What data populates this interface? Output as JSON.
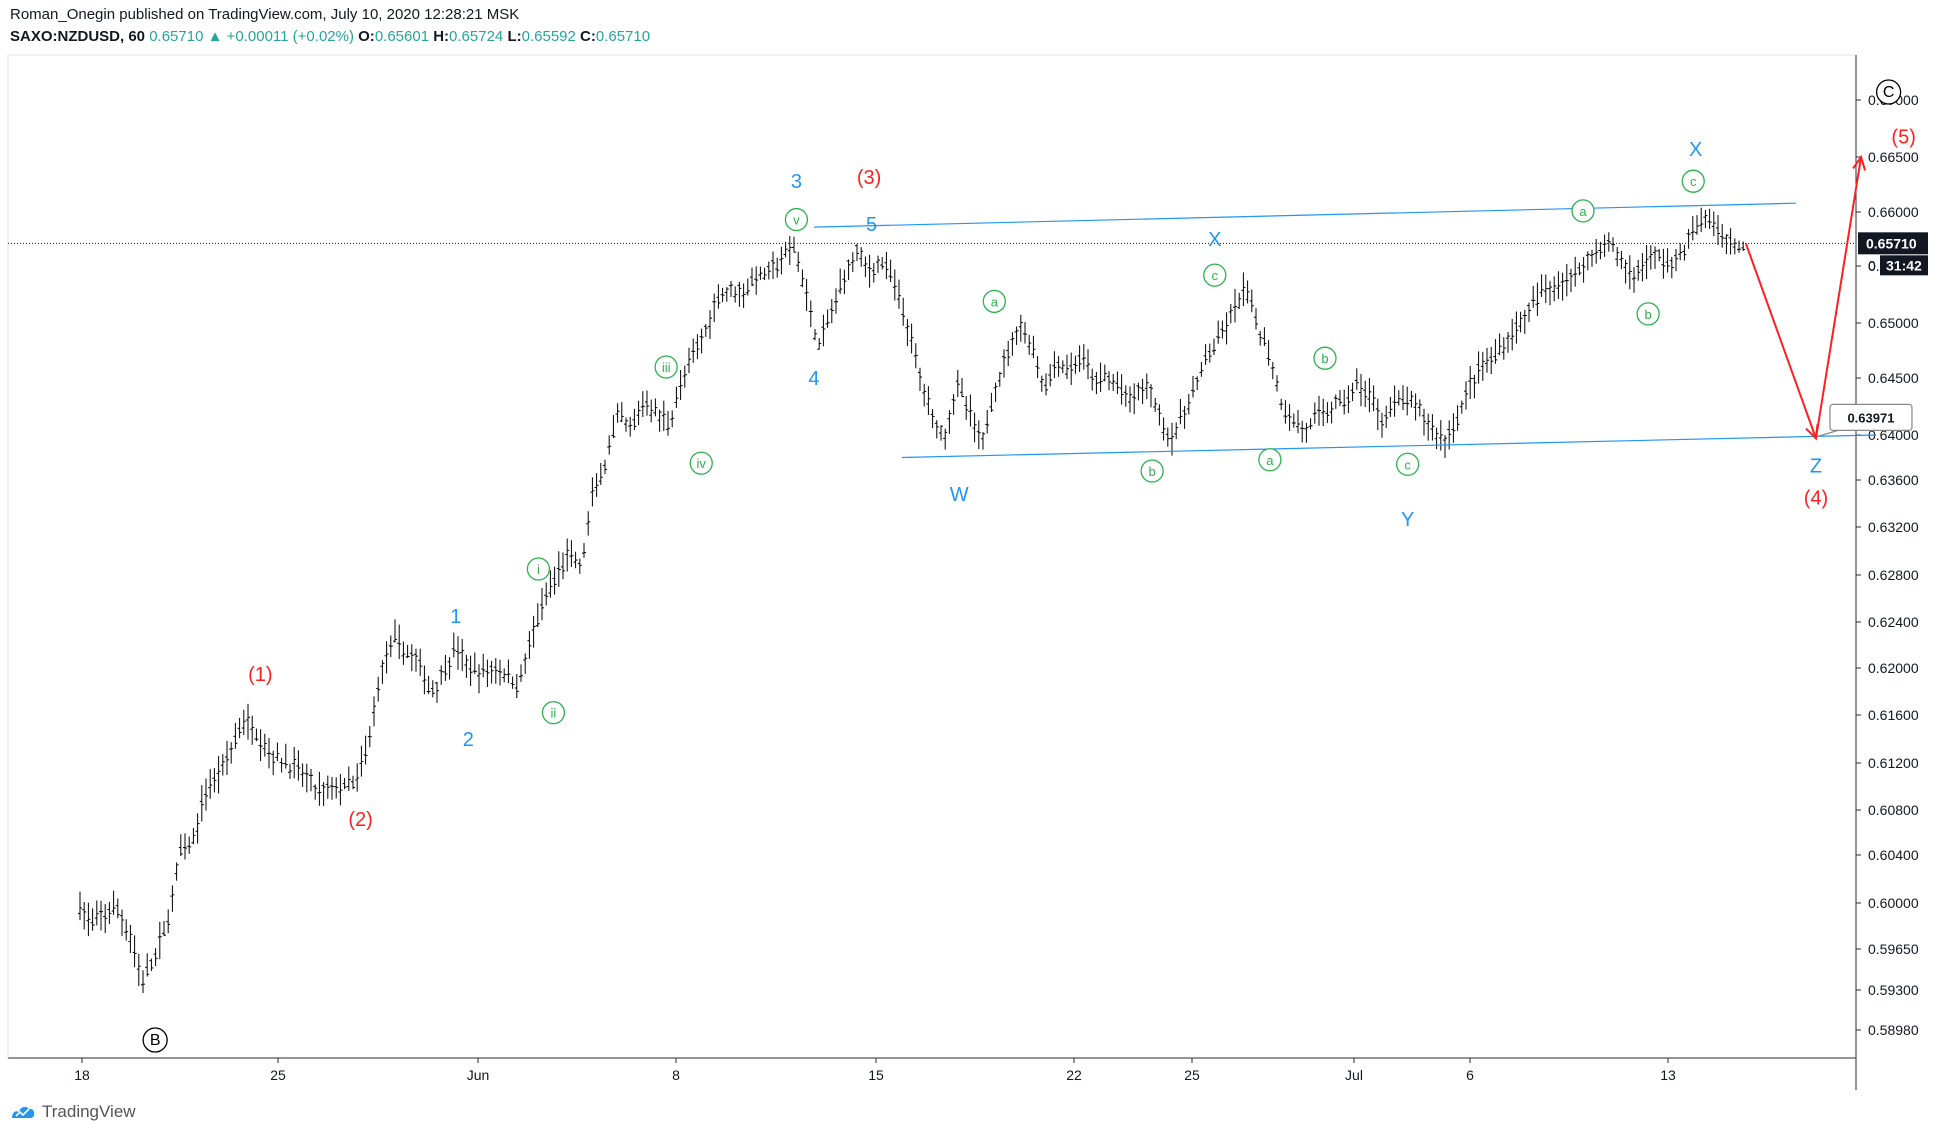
{
  "header": {
    "line1": "Roman_Onegin published on TradingView.com, July 10, 2020 12:28:21 MSK",
    "symbol": "SAXO:NZDUSD, 60",
    "last": "0.65710",
    "change_arrow": "▲",
    "change": "+0.00011 (+0.02%)",
    "o_label": "O:",
    "o_value": "0.65601",
    "h_label": "H:",
    "h_value": "0.65724",
    "l_label": "L:",
    "l_value": "0.65592",
    "c_label": "C:",
    "c_value": "0.65710"
  },
  "footer": {
    "brand": "TradingView",
    "logo_icon": "tradingview-logo-icon"
  },
  "colors": {
    "up": "#26a69a",
    "blue": "#2196f3",
    "red": "#ff1f1f",
    "green": "#2bb24c",
    "black": "#000000",
    "price_line": "#131722"
  },
  "chart_data": {
    "type": "candlestick",
    "symbol": "SAXO:NZDUSD",
    "timeframe": "60",
    "last_price_label": "0.65710",
    "countdown_label": "31:42",
    "target_label": "0.63971",
    "y_ticks": [
      "0.67000",
      "0.66500",
      "0.66000",
      "0.65500",
      "0.65000",
      "0.64500",
      "0.64000",
      "0.63600",
      "0.63200",
      "0.62800",
      "0.62400",
      "0.62000",
      "0.61600",
      "0.61200",
      "0.60800",
      "0.60400",
      "0.60000",
      "0.59650",
      "0.59300",
      "0.58980"
    ],
    "x_ticks": [
      "18",
      "25",
      "Jun",
      "8",
      "15",
      "22",
      "25",
      "Jul",
      "6",
      "13"
    ],
    "price_path": [
      [
        0,
        0.5998
      ],
      [
        0.5,
        0.5982
      ],
      [
        1,
        0.5992
      ],
      [
        1.5,
        0.5995
      ],
      [
        2,
        0.5975
      ],
      [
        2.5,
        0.5937
      ],
      [
        3,
        0.5958
      ],
      [
        3.5,
        0.5985
      ],
      [
        4,
        0.6042
      ],
      [
        4.5,
        0.605
      ],
      [
        5,
        0.6095
      ],
      [
        5.5,
        0.611
      ],
      [
        6,
        0.613
      ],
      [
        6.5,
        0.6155
      ],
      [
        7,
        0.6148
      ],
      [
        7.5,
        0.613
      ],
      [
        8,
        0.6122
      ],
      [
        8.5,
        0.6118
      ],
      [
        9,
        0.6108
      ],
      [
        9.5,
        0.6095
      ],
      [
        10,
        0.6098
      ],
      [
        10.5,
        0.61
      ],
      [
        11,
        0.6102
      ],
      [
        11.5,
        0.6135
      ],
      [
        12,
        0.6195
      ],
      [
        12.5,
        0.6225
      ],
      [
        13,
        0.6215
      ],
      [
        13.5,
        0.6205
      ],
      [
        14,
        0.618
      ],
      [
        14.5,
        0.6195
      ],
      [
        15,
        0.6218
      ],
      [
        15.5,
        0.62
      ],
      [
        16,
        0.6195
      ],
      [
        16.5,
        0.62
      ],
      [
        17,
        0.6195
      ],
      [
        17.5,
        0.6185
      ],
      [
        18,
        0.6225
      ],
      [
        18.5,
        0.6255
      ],
      [
        19,
        0.6278
      ],
      [
        19.5,
        0.6298
      ],
      [
        20,
        0.6285
      ],
      [
        20.5,
        0.635
      ],
      [
        21,
        0.6375
      ],
      [
        21.5,
        0.6418
      ],
      [
        22,
        0.6402
      ],
      [
        22.5,
        0.643
      ],
      [
        23,
        0.642
      ],
      [
        23.5,
        0.641
      ],
      [
        24,
        0.6445
      ],
      [
        24.5,
        0.647
      ],
      [
        25,
        0.6495
      ],
      [
        25.5,
        0.6525
      ],
      [
        26,
        0.653
      ],
      [
        26.5,
        0.6528
      ],
      [
        27,
        0.654
      ],
      [
        27.5,
        0.6545
      ],
      [
        28,
        0.6555
      ],
      [
        28.5,
        0.6568
      ],
      [
        29,
        0.6525
      ],
      [
        29.5,
        0.6478
      ],
      [
        30,
        0.651
      ],
      [
        30.5,
        0.654
      ],
      [
        31,
        0.6565
      ],
      [
        31.5,
        0.6545
      ],
      [
        32,
        0.6555
      ],
      [
        32.5,
        0.6535
      ],
      [
        33,
        0.65
      ],
      [
        33.5,
        0.6455
      ],
      [
        34,
        0.6418
      ],
      [
        34.5,
        0.6398
      ],
      [
        35,
        0.6445
      ],
      [
        35.5,
        0.642
      ],
      [
        36,
        0.639
      ],
      [
        36.5,
        0.644
      ],
      [
        37,
        0.647
      ],
      [
        37.5,
        0.65
      ],
      [
        38,
        0.6478
      ],
      [
        38.5,
        0.644
      ],
      [
        39,
        0.6465
      ],
      [
        39.5,
        0.6455
      ],
      [
        40,
        0.647
      ],
      [
        40.5,
        0.6445
      ],
      [
        41,
        0.6452
      ],
      [
        41.5,
        0.644
      ],
      [
        42,
        0.643
      ],
      [
        42.5,
        0.6445
      ],
      [
        43,
        0.6425
      ],
      [
        43.5,
        0.6395
      ],
      [
        44,
        0.6415
      ],
      [
        44.5,
        0.644
      ],
      [
        45,
        0.647
      ],
      [
        45.5,
        0.6485
      ],
      [
        46,
        0.6508
      ],
      [
        46.5,
        0.653
      ],
      [
        47,
        0.6498
      ],
      [
        47.5,
        0.647
      ],
      [
        48,
        0.6425
      ],
      [
        48.5,
        0.641
      ],
      [
        49,
        0.6405
      ],
      [
        49.5,
        0.6418
      ],
      [
        50,
        0.6425
      ],
      [
        50.5,
        0.643
      ],
      [
        51,
        0.6445
      ],
      [
        51.5,
        0.6432
      ],
      [
        52,
        0.6415
      ],
      [
        52.5,
        0.6428
      ],
      [
        53,
        0.643
      ],
      [
        53.5,
        0.642
      ],
      [
        54,
        0.6405
      ],
      [
        54.5,
        0.6395
      ],
      [
        55,
        0.6415
      ],
      [
        55.5,
        0.6445
      ],
      [
        56,
        0.6462
      ],
      [
        56.5,
        0.647
      ],
      [
        57,
        0.6485
      ],
      [
        57.5,
        0.65
      ],
      [
        58,
        0.6515
      ],
      [
        58.5,
        0.653
      ],
      [
        59,
        0.6535
      ],
      [
        59.5,
        0.654
      ],
      [
        60,
        0.655
      ],
      [
        60.5,
        0.6565
      ],
      [
        61,
        0.6572
      ],
      [
        61.5,
        0.6555
      ],
      [
        62,
        0.654
      ],
      [
        62.5,
        0.6555
      ],
      [
        63,
        0.656
      ],
      [
        63.5,
        0.655
      ],
      [
        64,
        0.6565
      ],
      [
        64.5,
        0.6585
      ],
      [
        65,
        0.6595
      ],
      [
        65.5,
        0.6578
      ],
      [
        66,
        0.6571
      ],
      [
        66.5,
        0.6565
      ]
    ],
    "channel_upper": {
      "from": [
        29.3,
        0.6586
      ],
      "to": [
        68.5,
        0.6608
      ]
    },
    "channel_lower": {
      "from": [
        32.8,
        0.638
      ],
      "to": [
        71.7,
        0.64
      ]
    },
    "projection": [
      [
        66.5,
        0.6571
      ],
      [
        69.3,
        0.6397
      ],
      [
        71.1,
        0.665
      ]
    ],
    "wave_labels": [
      {
        "text": "B",
        "style": "circle-black",
        "x": 3.0,
        "y": 0.589
      },
      {
        "text": "C",
        "style": "circle-black",
        "x": 72.2,
        "y": 0.6707
      },
      {
        "text": "(1)",
        "style": "red",
        "x": 7.2,
        "y": 0.6195
      },
      {
        "text": "(2)",
        "style": "red",
        "x": 11.2,
        "y": 0.6072
      },
      {
        "text": "(3)",
        "style": "red",
        "x": 31.5,
        "y": 0.6632
      },
      {
        "text": "(4)",
        "style": "red",
        "x": 69.3,
        "y": 0.6345
      },
      {
        "text": "(5)",
        "style": "red",
        "x": 72.8,
        "y": 0.6668
      },
      {
        "text": "1",
        "style": "blue",
        "x": 15.0,
        "y": 0.6245
      },
      {
        "text": "2",
        "style": "blue",
        "x": 15.5,
        "y": 0.614
      },
      {
        "text": "3",
        "style": "blue",
        "x": 28.6,
        "y": 0.6628
      },
      {
        "text": "4",
        "style": "blue",
        "x": 29.3,
        "y": 0.645
      },
      {
        "text": "5",
        "style": "blue",
        "x": 31.6,
        "y": 0.6589
      },
      {
        "text": "W",
        "style": "blue",
        "x": 35.1,
        "y": 0.6348
      },
      {
        "text": "X",
        "style": "blue",
        "x": 45.3,
        "y": 0.6575
      },
      {
        "text": "Y",
        "style": "blue",
        "x": 53.0,
        "y": 0.6327
      },
      {
        "text": "X",
        "style": "blue",
        "x": 64.5,
        "y": 0.6657
      },
      {
        "text": "Z",
        "style": "blue",
        "x": 69.3,
        "y": 0.6373
      },
      {
        "text": "i",
        "style": "circle-green",
        "x": 18.3,
        "y": 0.6285
      },
      {
        "text": "ii",
        "style": "circle-green",
        "x": 18.9,
        "y": 0.6162
      },
      {
        "text": "iii",
        "style": "circle-green",
        "x": 23.4,
        "y": 0.646
      },
      {
        "text": "iv",
        "style": "circle-green",
        "x": 24.8,
        "y": 0.6375
      },
      {
        "text": "v",
        "style": "circle-green",
        "x": 28.6,
        "y": 0.6593
      },
      {
        "text": "a",
        "style": "circle-green",
        "x": 36.5,
        "y": 0.6519
      },
      {
        "text": "b",
        "style": "circle-green",
        "x": 42.8,
        "y": 0.6368
      },
      {
        "text": "c",
        "style": "circle-green",
        "x": 45.3,
        "y": 0.6542
      },
      {
        "text": "a",
        "style": "circle-green",
        "x": 47.5,
        "y": 0.6378
      },
      {
        "text": "b",
        "style": "circle-green",
        "x": 49.7,
        "y": 0.6468
      },
      {
        "text": "c",
        "style": "circle-green",
        "x": 53.0,
        "y": 0.6374
      },
      {
        "text": "a",
        "style": "circle-green",
        "x": 60.0,
        "y": 0.6601
      },
      {
        "text": "b",
        "style": "circle-green",
        "x": 62.6,
        "y": 0.6508
      },
      {
        "text": "c",
        "style": "circle-green",
        "x": 64.4,
        "y": 0.6628
      }
    ]
  }
}
